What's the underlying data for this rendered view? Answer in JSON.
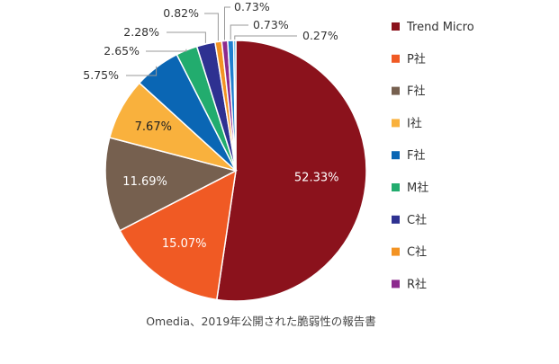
{
  "chart_data": {
    "type": "pie",
    "caption": "Omedia、2019年公開された脆弱性の報告書",
    "legend_position": "right",
    "slices": [
      {
        "name": "Trend Micro",
        "value": 52.33,
        "label": "52.33%",
        "color": "#8b121c"
      },
      {
        "name": "P社",
        "value": 15.07,
        "label": "15.07%",
        "color": "#f05a24"
      },
      {
        "name": "F社",
        "value": 11.69,
        "label": "11.69%",
        "color": "#76604f"
      },
      {
        "name": "I社",
        "value": 7.67,
        "label": "7.67%",
        "color": "#f9b13d"
      },
      {
        "name": "F社",
        "value": 5.75,
        "label": "5.75%",
        "color": "#0a66b4"
      },
      {
        "name": "M社",
        "value": 2.65,
        "label": "2.65%",
        "color": "#22ac6e"
      },
      {
        "name": "C社",
        "value": 2.28,
        "label": "2.28%",
        "color": "#2e3191"
      },
      {
        "name": "C社",
        "value": 0.82,
        "label": "0.82%",
        "color": "#f39323"
      },
      {
        "name": "R社",
        "value": 0.73,
        "label": "0.73%",
        "color": "#8d2a8e"
      },
      {
        "name": "",
        "value": 0.73,
        "label": "0.73%",
        "color": "#1f7fcf"
      },
      {
        "name": "",
        "value": 0.27,
        "label": "0.27%",
        "color": "#3aa9e0"
      }
    ]
  }
}
